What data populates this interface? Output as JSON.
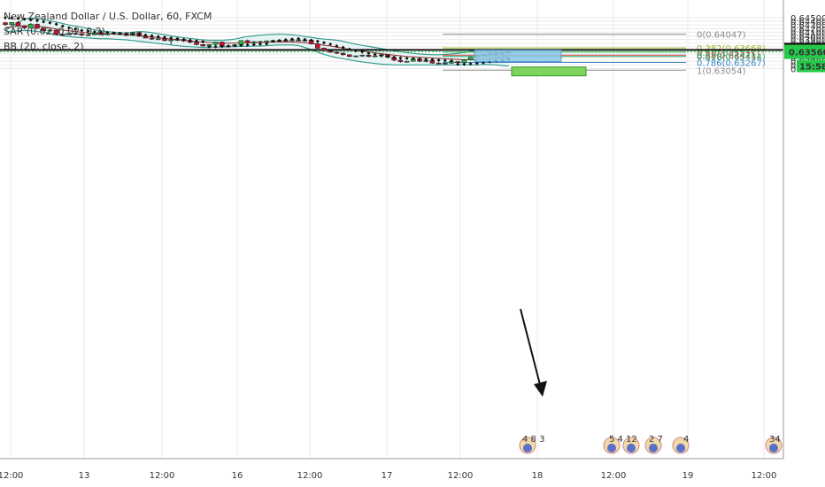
{
  "legend": {
    "title": "New Zealand Dollar / U.S. Dollar, 60, FXCM",
    "sar": "SAR (0.02, 0.02, 0.2)",
    "bb": "BB (20, close, 2)"
  },
  "colors": {
    "up": "#2db83d",
    "down": "#c8102e",
    "bb_band": "#3a9c8f",
    "bb_basis": "#8b2b2b",
    "bb_fill": "#e6f4f4",
    "sar": "#111111",
    "grid": "#eaeaea",
    "price_line": "#111111",
    "last_line": "#27c94a"
  },
  "chart_data": {
    "type": "candlestick",
    "title": "New Zealand Dollar / U.S. Dollar, 60, FXCM",
    "ylim": [
      0.63054,
      0.6451
    ],
    "y_ticks": [
      "0.64500",
      "0.64400",
      "0.64300",
      "0.64200",
      "0.64100",
      "0.64000",
      "0.63900",
      "0.63800",
      "0.63700",
      "0.63500",
      "0.63400",
      "0.63300",
      "0.63200",
      "0.63100"
    ],
    "x_ticks": [
      "12:00",
      "13",
      "12:00",
      "16",
      "12:00",
      "17",
      "12:00",
      "18",
      "12:00",
      "19",
      "12:00"
    ],
    "grid": true,
    "candles_ohlc": [
      [
        0.6436,
        0.6438,
        0.6428,
        0.6431
      ],
      [
        0.6431,
        0.6437,
        0.6428,
        0.6437
      ],
      [
        0.6437,
        0.6441,
        0.6427,
        0.6427
      ],
      [
        0.6427,
        0.6429,
        0.6418,
        0.6422
      ],
      [
        0.6422,
        0.6435,
        0.642,
        0.6432
      ],
      [
        0.6432,
        0.6434,
        0.6418,
        0.6421
      ],
      [
        0.6421,
        0.6423,
        0.6412,
        0.6414
      ],
      [
        0.6414,
        0.6418,
        0.641,
        0.6416
      ],
      [
        0.6416,
        0.6417,
        0.6401,
        0.6404
      ],
      [
        0.6404,
        0.6406,
        0.6399,
        0.6403
      ],
      [
        0.6403,
        0.641,
        0.6402,
        0.6407
      ],
      [
        0.6407,
        0.6409,
        0.6402,
        0.6406
      ],
      [
        0.6406,
        0.6407,
        0.6398,
        0.6402
      ],
      [
        0.6402,
        0.6405,
        0.64,
        0.6403
      ],
      [
        0.6403,
        0.641,
        0.6402,
        0.6408
      ],
      [
        0.6408,
        0.641,
        0.6402,
        0.6403
      ],
      [
        0.6403,
        0.6409,
        0.6401,
        0.6407
      ],
      [
        0.6407,
        0.6409,
        0.6403,
        0.6406
      ],
      [
        0.6406,
        0.6407,
        0.6402,
        0.6405
      ],
      [
        0.6405,
        0.6407,
        0.6399,
        0.6401
      ],
      [
        0.6401,
        0.641,
        0.64,
        0.6409
      ],
      [
        0.6409,
        0.6411,
        0.6397,
        0.6399
      ],
      [
        0.6399,
        0.6401,
        0.6393,
        0.6394
      ],
      [
        0.6394,
        0.6396,
        0.6389,
        0.6391
      ],
      [
        0.6391,
        0.6394,
        0.6388,
        0.6392
      ],
      [
        0.6392,
        0.6394,
        0.6385,
        0.6387
      ],
      [
        0.6387,
        0.6392,
        0.6376,
        0.6389
      ],
      [
        0.6389,
        0.6391,
        0.6385,
        0.639
      ],
      [
        0.639,
        0.6392,
        0.6383,
        0.6386
      ],
      [
        0.6386,
        0.6388,
        0.638,
        0.6382
      ],
      [
        0.6382,
        0.6384,
        0.6374,
        0.6376
      ],
      [
        0.6376,
        0.6378,
        0.637,
        0.6372
      ],
      [
        0.6372,
        0.6377,
        0.637,
        0.6376
      ],
      [
        0.6376,
        0.6384,
        0.6374,
        0.6383
      ],
      [
        0.6383,
        0.6384,
        0.637,
        0.6371
      ],
      [
        0.6371,
        0.6374,
        0.6369,
        0.6372
      ],
      [
        0.6372,
        0.6377,
        0.637,
        0.6375
      ],
      [
        0.6375,
        0.6388,
        0.6373,
        0.6387
      ],
      [
        0.6387,
        0.639,
        0.6378,
        0.6381
      ],
      [
        0.6381,
        0.6386,
        0.6378,
        0.6384
      ],
      [
        0.6384,
        0.6387,
        0.6381,
        0.6382
      ],
      [
        0.6382,
        0.6388,
        0.638,
        0.6386
      ],
      [
        0.6386,
        0.6389,
        0.6383,
        0.6387
      ],
      [
        0.6387,
        0.6389,
        0.6384,
        0.6388
      ],
      [
        0.6388,
        0.6389,
        0.6384,
        0.6386
      ],
      [
        0.6386,
        0.639,
        0.6385,
        0.6389
      ],
      [
        0.6389,
        0.6391,
        0.6385,
        0.6386
      ],
      [
        0.6386,
        0.639,
        0.6384,
        0.6388
      ],
      [
        0.6388,
        0.6389,
        0.6376,
        0.6378
      ],
      [
        0.6378,
        0.6381,
        0.6365,
        0.6366
      ],
      [
        0.6366,
        0.6368,
        0.6357,
        0.6359
      ],
      [
        0.6359,
        0.6361,
        0.6353,
        0.6355
      ],
      [
        0.6355,
        0.6357,
        0.635,
        0.6352
      ],
      [
        0.6352,
        0.6355,
        0.6346,
        0.6348
      ],
      [
        0.6348,
        0.6349,
        0.6341,
        0.6343
      ],
      [
        0.6343,
        0.6346,
        0.634,
        0.6345
      ],
      [
        0.6345,
        0.6349,
        0.6342,
        0.6347
      ],
      [
        0.6347,
        0.6349,
        0.6341,
        0.6343
      ],
      [
        0.6343,
        0.6346,
        0.6341,
        0.6345
      ],
      [
        0.6345,
        0.6349,
        0.634,
        0.6348
      ],
      [
        0.6348,
        0.6349,
        0.6339,
        0.6341
      ],
      [
        0.6341,
        0.6343,
        0.633,
        0.6333
      ],
      [
        0.6333,
        0.6336,
        0.6326,
        0.6329
      ],
      [
        0.6329,
        0.6331,
        0.6326,
        0.633
      ],
      [
        0.633,
        0.6338,
        0.6329,
        0.6336
      ],
      [
        0.6336,
        0.6339,
        0.6328,
        0.633
      ],
      [
        0.633,
        0.6335,
        0.6327,
        0.6332
      ],
      [
        0.6332,
        0.6335,
        0.6323,
        0.6325
      ],
      [
        0.6325,
        0.6328,
        0.6322,
        0.6324
      ],
      [
        0.6324,
        0.6327,
        0.6321,
        0.6325
      ],
      [
        0.6325,
        0.6331,
        0.6323,
        0.6329
      ],
      [
        0.6329,
        0.6331,
        0.6324,
        0.6326
      ],
      [
        0.6326,
        0.6336,
        0.6324,
        0.6334
      ],
      [
        0.6334,
        0.6342,
        0.6332,
        0.6341
      ],
      [
        0.6341,
        0.6347,
        0.634,
        0.6346
      ],
      [
        0.6346,
        0.635,
        0.6344,
        0.6349
      ],
      [
        0.6349,
        0.6355,
        0.6347,
        0.6352
      ],
      [
        0.6352,
        0.6358,
        0.6349,
        0.6351
      ],
      [
        0.6351,
        0.6355,
        0.6349,
        0.6353
      ],
      [
        0.6353,
        0.6357,
        0.635,
        0.6356
      ]
    ],
    "bb_upper": [
      0.6415,
      0.6426,
      0.6437,
      0.6446,
      0.6449,
      0.6448,
      0.6445,
      0.6442,
      0.6438,
      0.6434,
      0.643,
      0.6427,
      0.6424,
      0.642,
      0.6417,
      0.6414,
      0.6412,
      0.641,
      0.6409,
      0.6408,
      0.641,
      0.6412,
      0.6411,
      0.6409,
      0.6406,
      0.6403,
      0.64,
      0.6397,
      0.6395,
      0.6393,
      0.6391,
      0.6389,
      0.6388,
      0.6388,
      0.6388,
      0.6389,
      0.6391,
      0.6395,
      0.6398,
      0.64,
      0.6402,
      0.6403,
      0.6404,
      0.6405,
      0.6404,
      0.6403,
      0.6401,
      0.6398,
      0.6396,
      0.6393,
      0.6391,
      0.639,
      0.6388,
      0.6385,
      0.6381,
      0.6377,
      0.6374,
      0.6371,
      0.6368,
      0.6365,
      0.6362,
      0.6359,
      0.6356,
      0.6354,
      0.6352,
      0.635,
      0.6349,
      0.6348,
      0.6348,
      0.6349,
      0.635,
      0.6352,
      0.6354,
      0.6357,
      0.6359,
      0.636,
      0.6361,
      0.6362,
      0.6362,
      0.6362
    ],
    "bb_basis": [
      0.6423,
      0.6425,
      0.6427,
      0.6428,
      0.6428,
      0.6427,
      0.6425,
      0.6422,
      0.6419,
      0.6416,
      0.6414,
      0.6412,
      0.641,
      0.6408,
      0.6406,
      0.6405,
      0.6405,
      0.6405,
      0.6404,
      0.6403,
      0.6402,
      0.6401,
      0.6399,
      0.6397,
      0.6395,
      0.6393,
      0.6391,
      0.639,
      0.6388,
      0.6386,
      0.6384,
      0.6383,
      0.6382,
      0.6381,
      0.638,
      0.638,
      0.638,
      0.6381,
      0.6381,
      0.6381,
      0.6382,
      0.6382,
      0.6383,
      0.6383,
      0.6383,
      0.6383,
      0.6382,
      0.6381,
      0.6379,
      0.6377,
      0.6374,
      0.6372,
      0.6369,
      0.6366,
      0.6363,
      0.6361,
      0.6358,
      0.6356,
      0.6353,
      0.6351,
      0.6349,
      0.6347,
      0.6345,
      0.6343,
      0.6342,
      0.6341,
      0.634,
      0.6339,
      0.6338,
      0.6337,
      0.6336,
      0.6335,
      0.6334,
      0.6334,
      0.6334,
      0.6335,
      0.6336,
      0.6338,
      0.6339,
      0.634
    ],
    "bb_lower": [
      0.641,
      0.6412,
      0.6414,
      0.6415,
      0.6414,
      0.6412,
      0.641,
      0.6407,
      0.6403,
      0.64,
      0.6398,
      0.6396,
      0.6395,
      0.6394,
      0.6393,
      0.6392,
      0.6392,
      0.6391,
      0.639,
      0.6389,
      0.6387,
      0.6385,
      0.6383,
      0.6381,
      0.6379,
      0.6377,
      0.6375,
      0.6373,
      0.6371,
      0.637,
      0.6369,
      0.6368,
      0.6368,
      0.6369,
      0.6369,
      0.637,
      0.637,
      0.6371,
      0.6371,
      0.6372,
      0.6372,
      0.6373,
      0.6374,
      0.6375,
      0.6375,
      0.6375,
      0.6373,
      0.6368,
      0.6362,
      0.6355,
      0.6349,
      0.6344,
      0.634,
      0.6337,
      0.6334,
      0.6331,
      0.6328,
      0.6326,
      0.6324,
      0.6322,
      0.6321,
      0.632,
      0.632,
      0.632,
      0.632,
      0.632,
      0.632,
      0.632,
      0.632,
      0.632,
      0.632,
      0.632,
      0.632,
      0.632,
      0.632,
      0.6321,
      0.6321,
      0.632,
      0.6318,
      0.6317
    ],
    "sar": [
      0.645,
      0.6449,
      0.6448,
      0.6446,
      0.6444,
      0.6442,
      0.6439,
      0.6436,
      0.6432,
      0.6427,
      0.6422,
      0.6418,
      0.6415,
      0.6413,
      0.6411,
      0.641,
      0.6409,
      0.6408,
      0.6407,
      0.6406,
      0.6405,
      0.6404,
      0.6402,
      0.64,
      0.6398,
      0.6396,
      0.6394,
      0.6392,
      0.639,
      0.6388,
      0.6386,
      0.6384,
      0.637,
      0.637,
      0.6371,
      0.6372,
      0.6373,
      0.6374,
      0.6375,
      0.6376,
      0.6377,
      0.6378,
      0.6385,
      0.6387,
      0.6389,
      0.6391,
      0.6392,
      0.639,
      0.6388,
      0.6385,
      0.6381,
      0.6377,
      0.6372,
      0.6368,
      0.6363,
      0.6359,
      0.6356,
      0.6352,
      0.6349,
      0.6346,
      0.6343,
      0.6341,
      0.6339,
      0.6338,
      0.6337,
      0.6336,
      0.6335,
      0.6334,
      0.6333,
      0.6332,
      0.6331,
      0.6322,
      0.6322,
      0.6323,
      0.6324,
      0.6326,
      0.6329,
      0.6331,
      0.6333,
      0.6336
    ],
    "fib_levels": [
      {
        "label": "0(0.64047)",
        "value": 0.64047,
        "color": "#888888"
      },
      {
        "label": "0.382(0.63668)",
        "value": 0.63668,
        "color": "#9bbf2a"
      },
      {
        "label": "0.5(0.63551)",
        "value": 0.63551,
        "color": "#3cb371"
      },
      {
        "label": "0.58(0.63471)",
        "value": 0.63471,
        "color": "#d04040"
      },
      {
        "label": "0.618(0.63434)",
        "value": 0.63434,
        "color": "#2aa86e"
      },
      {
        "label": "0.786(0.63267)",
        "value": 0.63267,
        "color": "#3a88c8"
      },
      {
        "label": "1(0.63054)",
        "value": 0.63054,
        "color": "#888888"
      }
    ],
    "horizontal_line": {
      "value": 0.63614,
      "label": "0.63614"
    },
    "last_price": {
      "value": 0.6356,
      "label": "0.63560",
      "countdown": "15:58"
    },
    "event_icons": [
      {
        "x_label": "18",
        "labels": "4 8 3"
      },
      {
        "x_label": "12:00",
        "labels": "5 4 12 2 7 4"
      },
      {
        "x_label": "12:00",
        "labels": "34"
      }
    ],
    "annotations": {
      "resistance_box": [
        0.6354,
        0.6356
      ],
      "target_box": [
        0.6321,
        0.6324
      ],
      "arrow": "down"
    }
  }
}
